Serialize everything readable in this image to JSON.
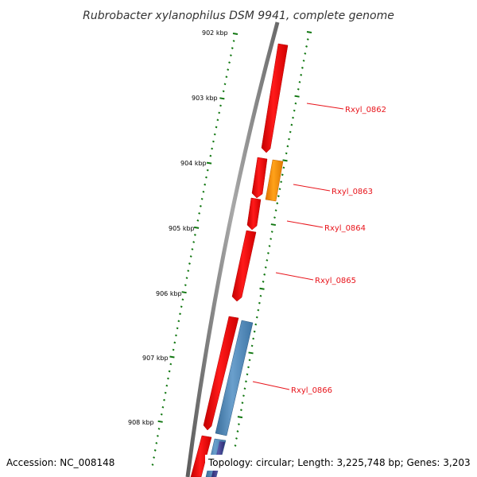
{
  "title": "Rubrobacter xylanophilus DSM 9941, complete genome",
  "accession": "Accession: NC_008148",
  "summary": "Topology: circular; Length: 3,225,748 bp; Genes: 3,203",
  "colors": {
    "backbone": "#7f7f7f",
    "gene_red": "#ee0000",
    "gene_orange": "#ff8c00",
    "gene_blue": "#4f86b5",
    "gene_navy": "#3a3a8a",
    "tick": "#117711",
    "label": "#e8141b"
  },
  "kbp_ticks": [
    {
      "label": "902 kbp"
    },
    {
      "label": "903 kbp"
    },
    {
      "label": "904 kbp"
    },
    {
      "label": "905 kbp"
    },
    {
      "label": "906 kbp"
    },
    {
      "label": "907 kbp"
    },
    {
      "label": "908 kbp"
    }
  ],
  "gene_labels": [
    {
      "label": "Rxyl_0862"
    },
    {
      "label": "Rxyl_0863"
    },
    {
      "label": "Rxyl_0864"
    },
    {
      "label": "Rxyl_0865"
    },
    {
      "label": "Rxyl_0866"
    }
  ]
}
